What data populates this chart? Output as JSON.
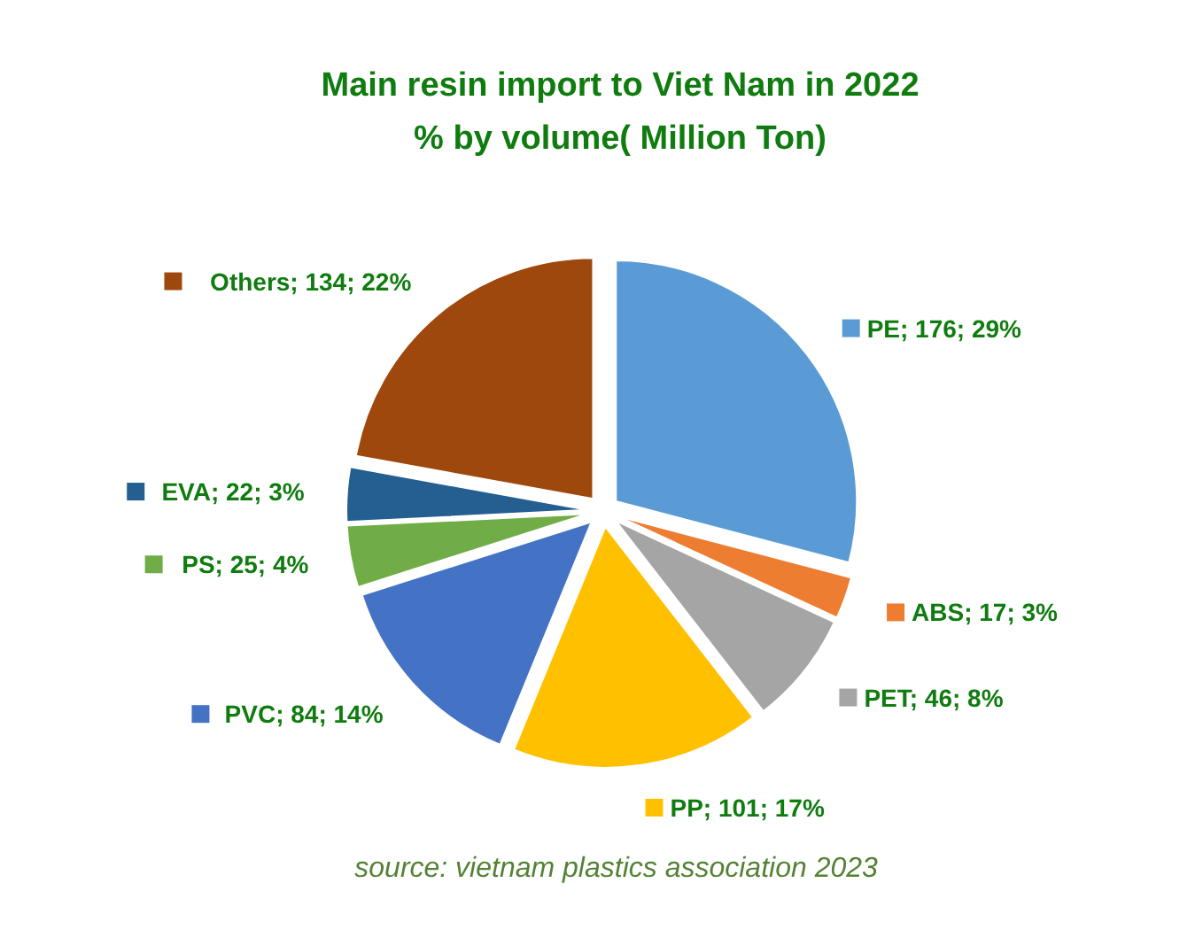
{
  "chart_data": {
    "type": "pie",
    "title": "Main resin import to Viet Nam in 2022",
    "subtitle": "% by volume( Million Ton)",
    "categories": [
      "PE",
      "ABS",
      "PET",
      "PP",
      "PVC",
      "PS",
      "EVA",
      "Others"
    ],
    "values": [
      176,
      17,
      46,
      101,
      84,
      25,
      22,
      134
    ],
    "colors": [
      "#5b9bd5",
      "#ed7d31",
      "#a5a5a5",
      "#ffc000",
      "#4472c4",
      "#70ad47",
      "#255e91",
      "#9e480e"
    ],
    "value_labels": [
      "176; 29%",
      "17; 3%",
      "46; 8%",
      "101; 17%",
      "84; 14%",
      "25; 4%",
      "22; 3%",
      "134; 22%"
    ],
    "legend": "center",
    "annotations": [
      "source:  vietnam plastics association 2023"
    ]
  }
}
